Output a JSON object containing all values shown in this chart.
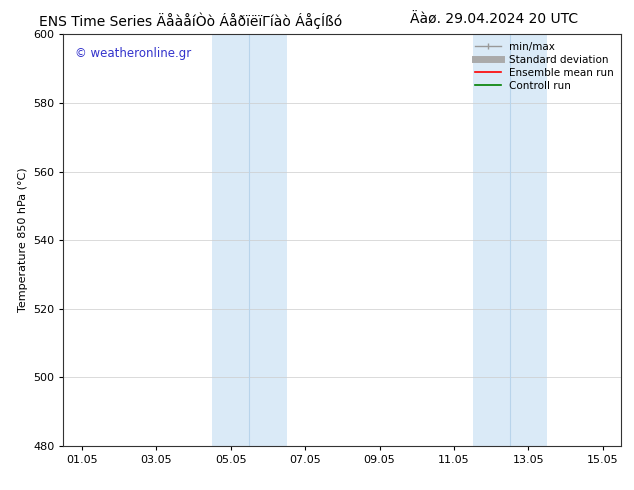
{
  "title_left": "ENS Time Series ÄåàåíÒò ÁåðïëïΓíàò ÁåçÍßó",
  "title_right": "Äàø. 29.04.2024 20 UTC",
  "ylabel": "Temperature 850 hPa (°C)",
  "ylim": [
    480,
    600
  ],
  "yticks": [
    480,
    500,
    520,
    540,
    560,
    580,
    600
  ],
  "xtick_labels": [
    "01.05",
    "03.05",
    "05.05",
    "07.05",
    "09.05",
    "11.05",
    "13.05",
    "15.05"
  ],
  "xtick_positions": [
    0,
    2,
    4,
    6,
    8,
    10,
    12,
    14
  ],
  "xlim": [
    -0.5,
    14.5
  ],
  "shaded_bands": [
    {
      "x_start": 3.5,
      "x_end": 4.5,
      "color": "#daeaf7"
    },
    {
      "x_start": 4.5,
      "x_end": 5.5,
      "color": "#daeaf7"
    },
    {
      "x_start": 10.5,
      "x_end": 11.5,
      "color": "#daeaf7"
    },
    {
      "x_start": 11.5,
      "x_end": 12.5,
      "color": "#daeaf7"
    }
  ],
  "watermark_text": "© weatheronline.gr",
  "watermark_color": "#3333cc",
  "bg_color": "#ffffff",
  "plot_bg_color": "#ffffff",
  "grid_color": "#cccccc",
  "title_fontsize": 10,
  "tick_fontsize": 8,
  "ylabel_fontsize": 8,
  "legend_fontsize": 7.5
}
